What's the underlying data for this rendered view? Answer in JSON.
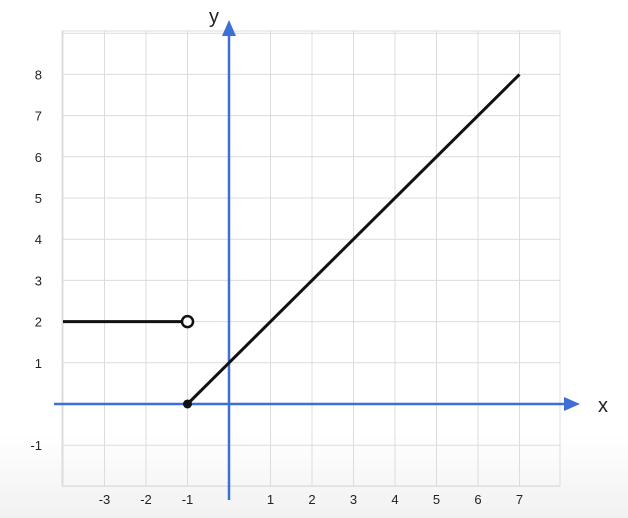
{
  "chart_data": {
    "type": "line",
    "xlabel": "x",
    "ylabel": "y",
    "xlim": [
      -4,
      8
    ],
    "ylim": [
      -2,
      9
    ],
    "x_ticks": [
      -3,
      -2,
      -1,
      1,
      2,
      3,
      4,
      5,
      6,
      7
    ],
    "y_ticks": [
      -1,
      1,
      2,
      3,
      4,
      5,
      6,
      7,
      8
    ],
    "grid": true,
    "series": [
      {
        "points": [
          [
            -4,
            2
          ],
          [
            -1,
            2
          ]
        ],
        "end_marker": "open-circle"
      },
      {
        "points": [
          [
            -1,
            0
          ],
          [
            7,
            8
          ]
        ],
        "start_marker": "closed-dot"
      }
    ],
    "colors": {
      "axes": "#3d6fd6",
      "grid": "#dcdcdc",
      "line": "#111111"
    }
  }
}
